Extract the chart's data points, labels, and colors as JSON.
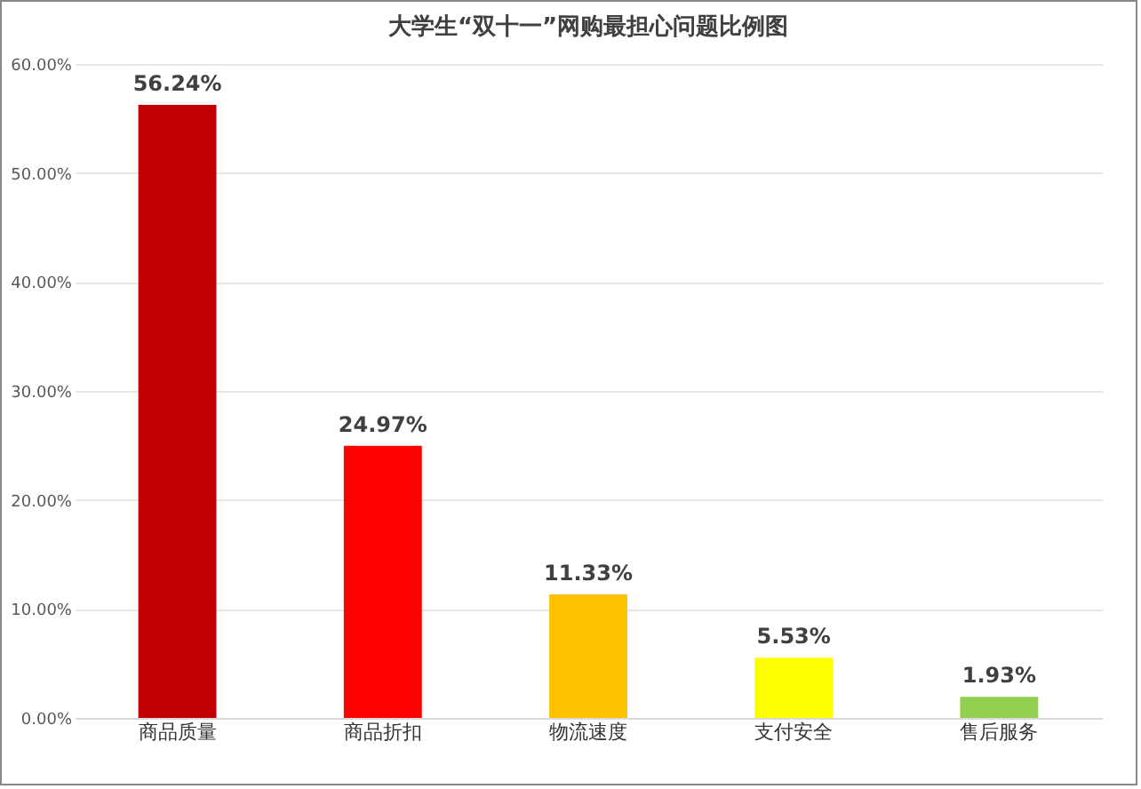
{
  "chart_data": {
    "type": "bar",
    "title": "大学生“双十一”网购最担心问题比例图",
    "categories": [
      "商品质量",
      "商品折扣",
      "物流速度",
      "支付安全",
      "售后服务"
    ],
    "values": [
      56.24,
      24.97,
      11.33,
      5.53,
      1.93
    ],
    "colors": [
      "#c00000",
      "#ff0000",
      "#ffc000",
      "#ffff00",
      "#92d050"
    ],
    "value_labels": [
      "56.24%",
      "24.97%",
      "11.33%",
      "5.53%",
      "1.93%"
    ],
    "ylim": [
      0,
      60
    ],
    "yticks": [
      {
        "value": 0,
        "label": "0.00%"
      },
      {
        "value": 10,
        "label": "10.00%"
      },
      {
        "value": 20,
        "label": "20.00%"
      },
      {
        "value": 30,
        "label": "30.00%"
      },
      {
        "value": 40,
        "label": "40.00%"
      },
      {
        "value": 50,
        "label": "50.00%"
      },
      {
        "value": 60,
        "label": "60.00%"
      }
    ],
    "grid": "y"
  }
}
